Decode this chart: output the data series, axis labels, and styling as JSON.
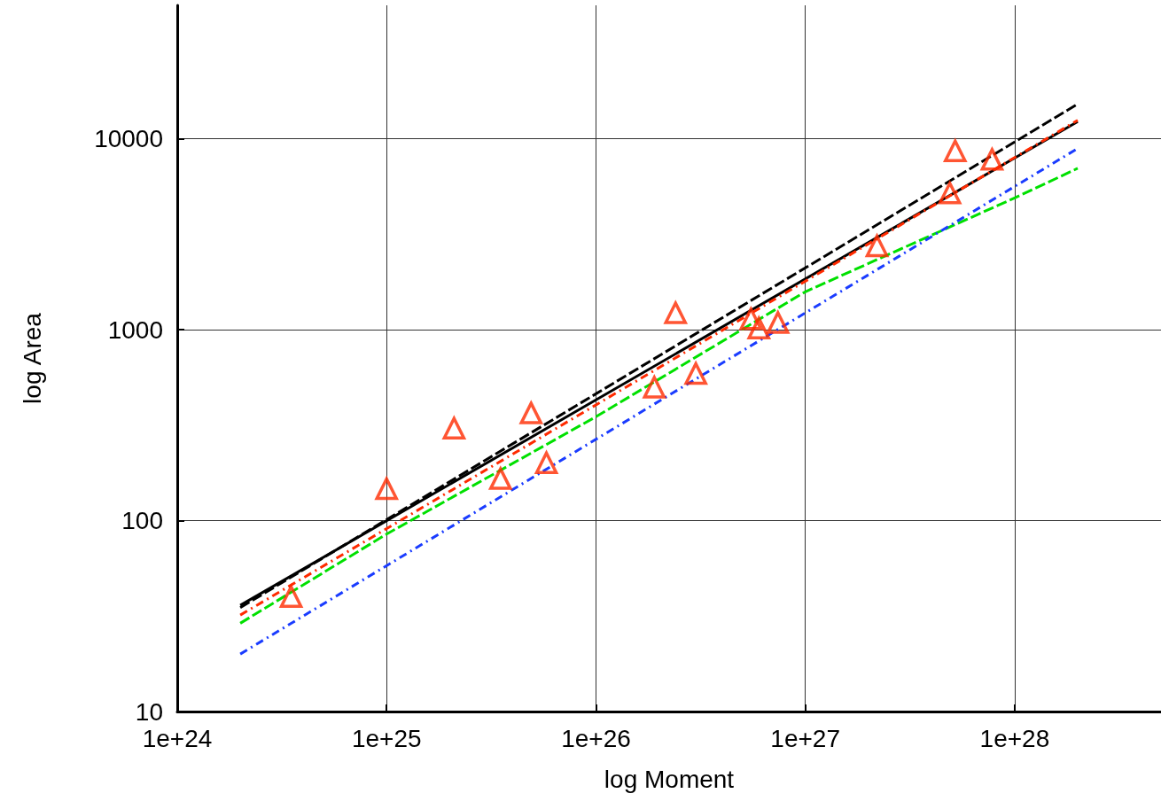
{
  "chart_data": {
    "type": "scatter",
    "xlabel": "log Moment",
    "ylabel": "log Area",
    "log": "xy",
    "grid": true,
    "xlim": [
      1e+24,
      5e+28
    ],
    "xticks": [
      {
        "value": 1e+24,
        "label": "1e+24"
      },
      {
        "value": 1e+25,
        "label": "1e+25"
      },
      {
        "value": 1e+26,
        "label": "1e+26"
      },
      {
        "value": 1e+27,
        "label": "1e+27"
      },
      {
        "value": 1e+28,
        "label": "1e+28"
      }
    ],
    "ylim": [
      10,
      50000
    ],
    "yticks": [
      10,
      100,
      1000,
      10000
    ],
    "series": [
      {
        "type": "line",
        "color": "#000000",
        "line_style": "solid",
        "marker": "none",
        "x": [
          2e+24,
          2e+28
        ],
        "values": [
          36,
          12300
        ]
      },
      {
        "type": "line",
        "color": "#000000",
        "line_style": "dashed",
        "marker": "none",
        "x": [
          2e+24,
          2e+28
        ],
        "values": [
          35,
          15200
        ]
      },
      {
        "type": "line",
        "color": "#ff2a00",
        "line_style": "dotted",
        "marker": "none",
        "x": [
          2e+24,
          2e+28
        ],
        "values": [
          32,
          12500
        ]
      },
      {
        "type": "line",
        "color": "#00e000",
        "line_style": "dashed",
        "marker": "none",
        "x": [
          2e+24,
          1e+25,
          1e+26,
          1e+27,
          1e+28,
          2e+28
        ],
        "values": [
          29,
          85,
          350,
          1580,
          4900,
          7000
        ]
      },
      {
        "type": "line",
        "color": "#1a3cff",
        "line_style": "dotted",
        "marker": "none",
        "x": [
          2e+24,
          2e+28
        ],
        "values": [
          20,
          8900
        ]
      },
      {
        "color": "#ff2a00",
        "marker": "triangle",
        "x": [
          3.5e+24,
          1e+25,
          2.1e+25,
          3.5e+25,
          4.9e+25,
          5.8e+25,
          1.9e+26,
          2.4e+26,
          3e+26,
          5.5e+26,
          6e+26,
          7.4e+26,
          2.2e+27,
          4.9e+27,
          5.2e+27,
          7.8e+27
        ],
        "values": [
          40,
          147,
          305,
          166,
          366,
          201,
          500,
          1225,
          590,
          1140,
          1020,
          1090,
          2750,
          5200,
          8650,
          7800
        ]
      }
    ]
  }
}
